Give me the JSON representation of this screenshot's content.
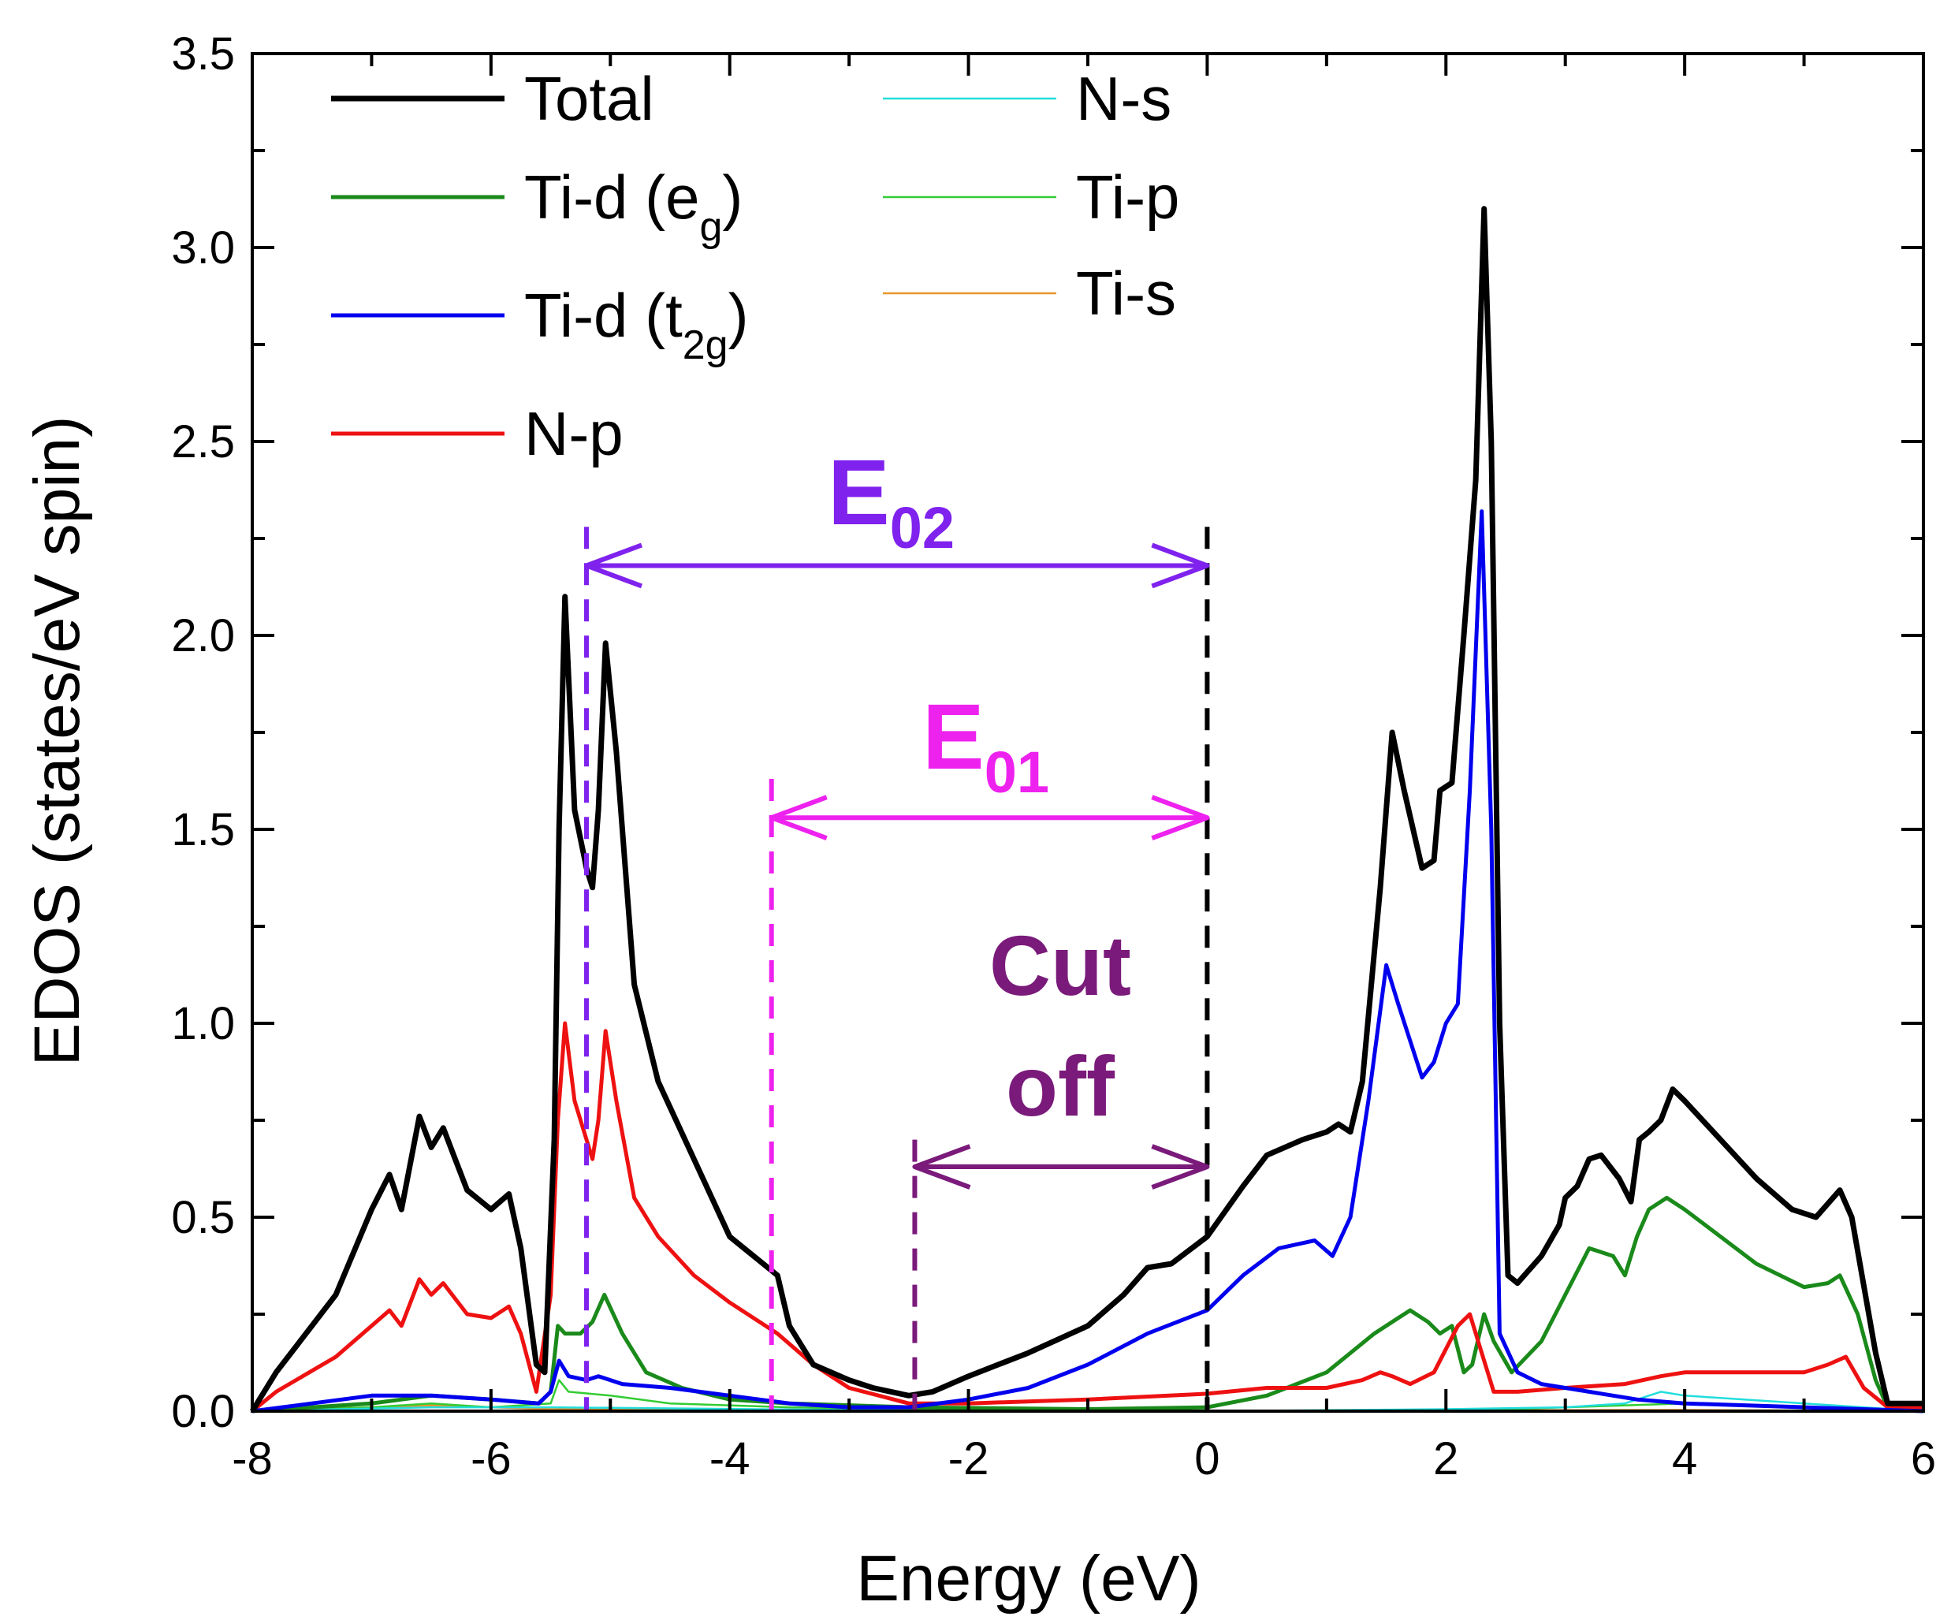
{
  "chart_data": {
    "type": "line",
    "xlabel": "Energy (eV)",
    "ylabel": "EDOS (states/eV spin)",
    "xlim": [
      -8,
      6
    ],
    "ylim": [
      0,
      3.5
    ],
    "xticks": [
      "-8",
      "-6",
      "-4",
      "-2",
      "0",
      "2",
      "4",
      "6"
    ],
    "yticks": [
      "0.0",
      "0.5",
      "1.0",
      "1.5",
      "2.0",
      "2.5",
      "3.0",
      "3.5"
    ],
    "legend_position": "top-left",
    "series": [
      {
        "name": "Total",
        "label": "Total",
        "color": "#000000",
        "width": 7,
        "points": [
          [
            -8,
            0
          ],
          [
            -7.8,
            0.1
          ],
          [
            -7.3,
            0.3
          ],
          [
            -7,
            0.52
          ],
          [
            -6.85,
            0.61
          ],
          [
            -6.75,
            0.52
          ],
          [
            -6.6,
            0.76
          ],
          [
            -6.5,
            0.68
          ],
          [
            -6.4,
            0.73
          ],
          [
            -6.3,
            0.65
          ],
          [
            -6.2,
            0.57
          ],
          [
            -6.0,
            0.52
          ],
          [
            -5.85,
            0.56
          ],
          [
            -5.75,
            0.42
          ],
          [
            -5.62,
            0.12
          ],
          [
            -5.55,
            0.1
          ],
          [
            -5.47,
            0.7
          ],
          [
            -5.43,
            1.5
          ],
          [
            -5.38,
            2.1
          ],
          [
            -5.3,
            1.55
          ],
          [
            -5.2,
            1.4
          ],
          [
            -5.15,
            1.35
          ],
          [
            -5.1,
            1.55
          ],
          [
            -5.04,
            1.98
          ],
          [
            -4.95,
            1.7
          ],
          [
            -4.8,
            1.1
          ],
          [
            -4.6,
            0.85
          ],
          [
            -4.3,
            0.65
          ],
          [
            -4.0,
            0.45
          ],
          [
            -3.6,
            0.35
          ],
          [
            -3.5,
            0.22
          ],
          [
            -3.3,
            0.12
          ],
          [
            -3.0,
            0.08
          ],
          [
            -2.8,
            0.06
          ],
          [
            -2.5,
            0.04
          ],
          [
            -2.3,
            0.05
          ],
          [
            -2.0,
            0.09
          ],
          [
            -1.5,
            0.15
          ],
          [
            -1.0,
            0.22
          ],
          [
            -0.7,
            0.3
          ],
          [
            -0.5,
            0.37
          ],
          [
            -0.3,
            0.38
          ],
          [
            0,
            0.45
          ],
          [
            0.3,
            0.58
          ],
          [
            0.5,
            0.66
          ],
          [
            0.8,
            0.7
          ],
          [
            1.0,
            0.72
          ],
          [
            1.1,
            0.74
          ],
          [
            1.2,
            0.72
          ],
          [
            1.3,
            0.85
          ],
          [
            1.45,
            1.35
          ],
          [
            1.55,
            1.75
          ],
          [
            1.65,
            1.6
          ],
          [
            1.8,
            1.4
          ],
          [
            1.9,
            1.42
          ],
          [
            1.95,
            1.6
          ],
          [
            2.05,
            1.62
          ],
          [
            2.15,
            2.0
          ],
          [
            2.25,
            2.4
          ],
          [
            2.32,
            3.1
          ],
          [
            2.38,
            2.5
          ],
          [
            2.45,
            1.0
          ],
          [
            2.52,
            0.35
          ],
          [
            2.6,
            0.33
          ],
          [
            2.8,
            0.4
          ],
          [
            2.95,
            0.48
          ],
          [
            3.0,
            0.55
          ],
          [
            3.1,
            0.58
          ],
          [
            3.2,
            0.65
          ],
          [
            3.3,
            0.66
          ],
          [
            3.45,
            0.6
          ],
          [
            3.55,
            0.54
          ],
          [
            3.62,
            0.7
          ],
          [
            3.7,
            0.72
          ],
          [
            3.8,
            0.75
          ],
          [
            3.9,
            0.83
          ],
          [
            4.0,
            0.8
          ],
          [
            4.3,
            0.7
          ],
          [
            4.6,
            0.6
          ],
          [
            4.9,
            0.52
          ],
          [
            5.1,
            0.5
          ],
          [
            5.3,
            0.57
          ],
          [
            5.4,
            0.5
          ],
          [
            5.6,
            0.15
          ],
          [
            5.7,
            0.02
          ],
          [
            6.0,
            0.02
          ]
        ]
      },
      {
        "name": "Ti-d (eg)",
        "label": "Ti-d (e",
        "sub": "g",
        "color": "#1a8a1a",
        "width": 5,
        "points": [
          [
            -8,
            0
          ],
          [
            -7.5,
            0.01
          ],
          [
            -7,
            0.02
          ],
          [
            -6.5,
            0.04
          ],
          [
            -6,
            0.03
          ],
          [
            -5.6,
            0.02
          ],
          [
            -5.5,
            0.05
          ],
          [
            -5.44,
            0.22
          ],
          [
            -5.38,
            0.2
          ],
          [
            -5.25,
            0.2
          ],
          [
            -5.15,
            0.23
          ],
          [
            -5.05,
            0.3
          ],
          [
            -4.9,
            0.2
          ],
          [
            -4.7,
            0.1
          ],
          [
            -4.4,
            0.06
          ],
          [
            -4.0,
            0.03
          ],
          [
            -3.5,
            0.02
          ],
          [
            -2.5,
            0.01
          ],
          [
            -1,
            0.005
          ],
          [
            0,
            0.01
          ],
          [
            0.5,
            0.04
          ],
          [
            1.0,
            0.1
          ],
          [
            1.4,
            0.2
          ],
          [
            1.6,
            0.24
          ],
          [
            1.7,
            0.26
          ],
          [
            1.85,
            0.23
          ],
          [
            1.95,
            0.2
          ],
          [
            2.05,
            0.22
          ],
          [
            2.15,
            0.1
          ],
          [
            2.22,
            0.12
          ],
          [
            2.32,
            0.25
          ],
          [
            2.4,
            0.18
          ],
          [
            2.55,
            0.1
          ],
          [
            2.8,
            0.18
          ],
          [
            3.0,
            0.3
          ],
          [
            3.2,
            0.42
          ],
          [
            3.4,
            0.4
          ],
          [
            3.5,
            0.35
          ],
          [
            3.6,
            0.45
          ],
          [
            3.7,
            0.52
          ],
          [
            3.85,
            0.55
          ],
          [
            4.0,
            0.52
          ],
          [
            4.3,
            0.45
          ],
          [
            4.6,
            0.38
          ],
          [
            5.0,
            0.32
          ],
          [
            5.2,
            0.33
          ],
          [
            5.3,
            0.35
          ],
          [
            5.45,
            0.25
          ],
          [
            5.6,
            0.08
          ],
          [
            5.7,
            0.01
          ],
          [
            6,
            0.01
          ]
        ]
      },
      {
        "name": "Ti-d (t2g)",
        "label": "Ti-d (t",
        "sub": "2g",
        "color": "#0000ee",
        "width": 5,
        "points": [
          [
            -8,
            0
          ],
          [
            -7.5,
            0.02
          ],
          [
            -7,
            0.04
          ],
          [
            -6.5,
            0.04
          ],
          [
            -6,
            0.03
          ],
          [
            -5.6,
            0.02
          ],
          [
            -5.5,
            0.05
          ],
          [
            -5.43,
            0.13
          ],
          [
            -5.35,
            0.09
          ],
          [
            -5.2,
            0.08
          ],
          [
            -5.1,
            0.09
          ],
          [
            -4.9,
            0.07
          ],
          [
            -4.5,
            0.06
          ],
          [
            -4.0,
            0.04
          ],
          [
            -3.5,
            0.02
          ],
          [
            -3.0,
            0.01
          ],
          [
            -2.5,
            0.01
          ],
          [
            -2.0,
            0.03
          ],
          [
            -1.5,
            0.06
          ],
          [
            -1.0,
            0.12
          ],
          [
            -0.5,
            0.2
          ],
          [
            0,
            0.26
          ],
          [
            0.3,
            0.35
          ],
          [
            0.6,
            0.42
          ],
          [
            0.9,
            0.44
          ],
          [
            1.05,
            0.4
          ],
          [
            1.2,
            0.5
          ],
          [
            1.35,
            0.8
          ],
          [
            1.5,
            1.15
          ],
          [
            1.6,
            1.05
          ],
          [
            1.8,
            0.86
          ],
          [
            1.9,
            0.9
          ],
          [
            2.0,
            1.0
          ],
          [
            2.1,
            1.05
          ],
          [
            2.2,
            1.6
          ],
          [
            2.3,
            2.32
          ],
          [
            2.38,
            1.5
          ],
          [
            2.45,
            0.2
          ],
          [
            2.6,
            0.1
          ],
          [
            2.8,
            0.07
          ],
          [
            3.2,
            0.05
          ],
          [
            3.6,
            0.03
          ],
          [
            4.0,
            0.02
          ],
          [
            5.0,
            0.01
          ],
          [
            6,
            0
          ]
        ]
      },
      {
        "name": "N-p",
        "label": "N-p",
        "color": "#ee1111",
        "width": 5,
        "points": [
          [
            -8,
            0
          ],
          [
            -7.8,
            0.05
          ],
          [
            -7.3,
            0.14
          ],
          [
            -7,
            0.22
          ],
          [
            -6.85,
            0.26
          ],
          [
            -6.75,
            0.22
          ],
          [
            -6.6,
            0.34
          ],
          [
            -6.5,
            0.3
          ],
          [
            -6.4,
            0.33
          ],
          [
            -6.3,
            0.29
          ],
          [
            -6.2,
            0.25
          ],
          [
            -6.0,
            0.24
          ],
          [
            -5.85,
            0.27
          ],
          [
            -5.75,
            0.2
          ],
          [
            -5.62,
            0.05
          ],
          [
            -5.5,
            0.3
          ],
          [
            -5.44,
            0.75
          ],
          [
            -5.38,
            1.0
          ],
          [
            -5.3,
            0.8
          ],
          [
            -5.15,
            0.65
          ],
          [
            -5.1,
            0.75
          ],
          [
            -5.04,
            0.98
          ],
          [
            -4.95,
            0.8
          ],
          [
            -4.8,
            0.55
          ],
          [
            -4.6,
            0.45
          ],
          [
            -4.3,
            0.35
          ],
          [
            -4.0,
            0.28
          ],
          [
            -3.6,
            0.2
          ],
          [
            -3.3,
            0.12
          ],
          [
            -3.0,
            0.06
          ],
          [
            -2.5,
            0.02
          ],
          [
            -2.0,
            0.02
          ],
          [
            -1.0,
            0.03
          ],
          [
            0,
            0.045
          ],
          [
            0.5,
            0.06
          ],
          [
            1.0,
            0.06
          ],
          [
            1.3,
            0.08
          ],
          [
            1.45,
            0.1
          ],
          [
            1.55,
            0.09
          ],
          [
            1.7,
            0.07
          ],
          [
            1.9,
            0.1
          ],
          [
            2.1,
            0.22
          ],
          [
            2.2,
            0.25
          ],
          [
            2.3,
            0.15
          ],
          [
            2.4,
            0.05
          ],
          [
            2.6,
            0.05
          ],
          [
            3.0,
            0.06
          ],
          [
            3.5,
            0.07
          ],
          [
            3.8,
            0.09
          ],
          [
            4.0,
            0.1
          ],
          [
            4.5,
            0.1
          ],
          [
            5.0,
            0.1
          ],
          [
            5.2,
            0.12
          ],
          [
            5.35,
            0.14
          ],
          [
            5.5,
            0.06
          ],
          [
            5.7,
            0.01
          ],
          [
            6,
            0.01
          ]
        ]
      },
      {
        "name": "N-s",
        "label": "N-s",
        "color": "#22dddd",
        "width": 2.5,
        "points": [
          [
            -8,
            0
          ],
          [
            -6.5,
            0.01
          ],
          [
            -5.5,
            0.01
          ],
          [
            -2,
            0
          ],
          [
            0,
            0
          ],
          [
            2,
            0.005
          ],
          [
            3,
            0.01
          ],
          [
            3.5,
            0.02
          ],
          [
            3.8,
            0.05
          ],
          [
            4.0,
            0.04
          ],
          [
            4.5,
            0.03
          ],
          [
            5.0,
            0.02
          ],
          [
            5.5,
            0.01
          ],
          [
            6,
            0
          ]
        ]
      },
      {
        "name": "Ti-p",
        "label": "Ti-p",
        "color": "#33cc33",
        "width": 2.5,
        "points": [
          [
            -8,
            0
          ],
          [
            -7,
            0.01
          ],
          [
            -6.5,
            0.02
          ],
          [
            -6,
            0.01
          ],
          [
            -5.5,
            0.02
          ],
          [
            -5.43,
            0.08
          ],
          [
            -5.35,
            0.05
          ],
          [
            -5.0,
            0.04
          ],
          [
            -4.5,
            0.02
          ],
          [
            -3.5,
            0.01
          ],
          [
            -2,
            0
          ],
          [
            0,
            0
          ],
          [
            2,
            0
          ],
          [
            3,
            0.01
          ],
          [
            4,
            0.02
          ],
          [
            5,
            0.01
          ],
          [
            6,
            0
          ]
        ]
      },
      {
        "name": "Ti-s",
        "label": "Ti-s",
        "color": "#e8952c",
        "width": 2.5,
        "points": [
          [
            -8,
            0
          ],
          [
            -7,
            0.01
          ],
          [
            -6.5,
            0.015
          ],
          [
            -6,
            0.01
          ],
          [
            -5.5,
            0.005
          ],
          [
            -3,
            0
          ],
          [
            0,
            0
          ],
          [
            2,
            0.002
          ],
          [
            4,
            0.003
          ],
          [
            6,
            0
          ]
        ]
      }
    ],
    "annotations": [
      {
        "id": "E02",
        "label": "E",
        "sub": "02",
        "color": "#7f22ee",
        "x_start": -5.2,
        "x_end": 0,
        "y": 2.18
      },
      {
        "id": "E01",
        "label": "E",
        "sub": "01",
        "color": "#ee22ee",
        "x_start": -3.65,
        "x_end": 0,
        "y": 1.53
      },
      {
        "id": "Cutoff",
        "label_line1": "Cut",
        "label_line2": "off",
        "color": "#7a1a7a",
        "x_start": -2.45,
        "x_end": 0,
        "y": 0.63
      }
    ],
    "fermi_line": {
      "x": 0,
      "color": "#000000",
      "ytop": 2.28
    },
    "dashed_markers": [
      {
        "x": -5.2,
        "color": "#7f22ee",
        "ytop": 2.28
      },
      {
        "x": -3.65,
        "color": "#ee22ee",
        "ytop": 1.63
      },
      {
        "x": -2.45,
        "color": "#7a1a7a",
        "ytop": 0.7
      }
    ]
  }
}
